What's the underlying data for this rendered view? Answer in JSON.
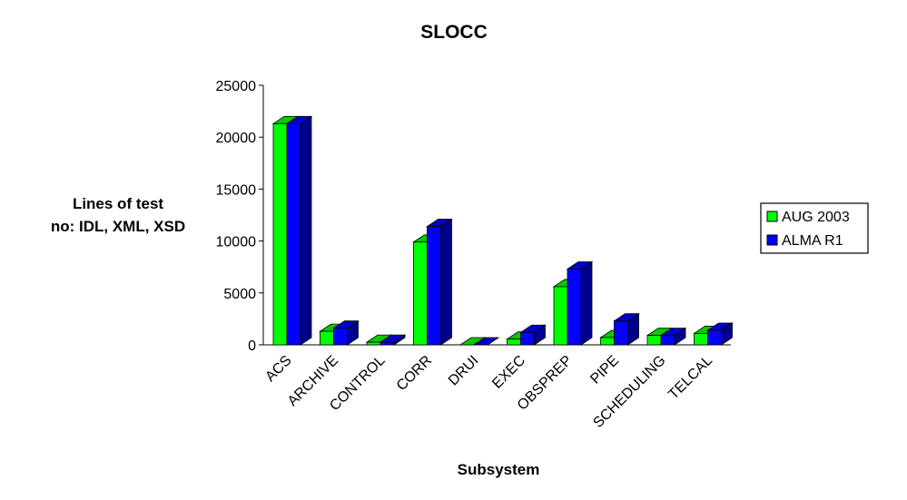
{
  "chart_data": {
    "type": "bar",
    "style": "3d-clustered-column",
    "title": "SLOCC",
    "xlabel": "Subsystem",
    "ylabel_lines": [
      "Lines of test",
      "no: IDL, XML,  XSD"
    ],
    "ylim": [
      0,
      25000
    ],
    "yticks": [
      "0",
      "5000",
      "10000",
      "15000",
      "20000",
      "25000"
    ],
    "categories": [
      "ACS",
      "ARCHIVE",
      "CONTROL",
      "CORR",
      "DRUI",
      "EXEC",
      "OBSPREP",
      "PIPE",
      "SCHEDULING",
      "TELCAL"
    ],
    "series": [
      {
        "name": "AUG 2003",
        "color": "#00ff00",
        "values": [
          21300,
          1300,
          250,
          9900,
          0,
          550,
          5600,
          700,
          900,
          1100
        ]
      },
      {
        "name": "ALMA R1",
        "color": "#0000ff",
        "values": [
          21300,
          1600,
          250,
          11400,
          0,
          1200,
          7300,
          2300,
          900,
          1400
        ]
      }
    ],
    "legend_position": "right",
    "grid": false
  }
}
